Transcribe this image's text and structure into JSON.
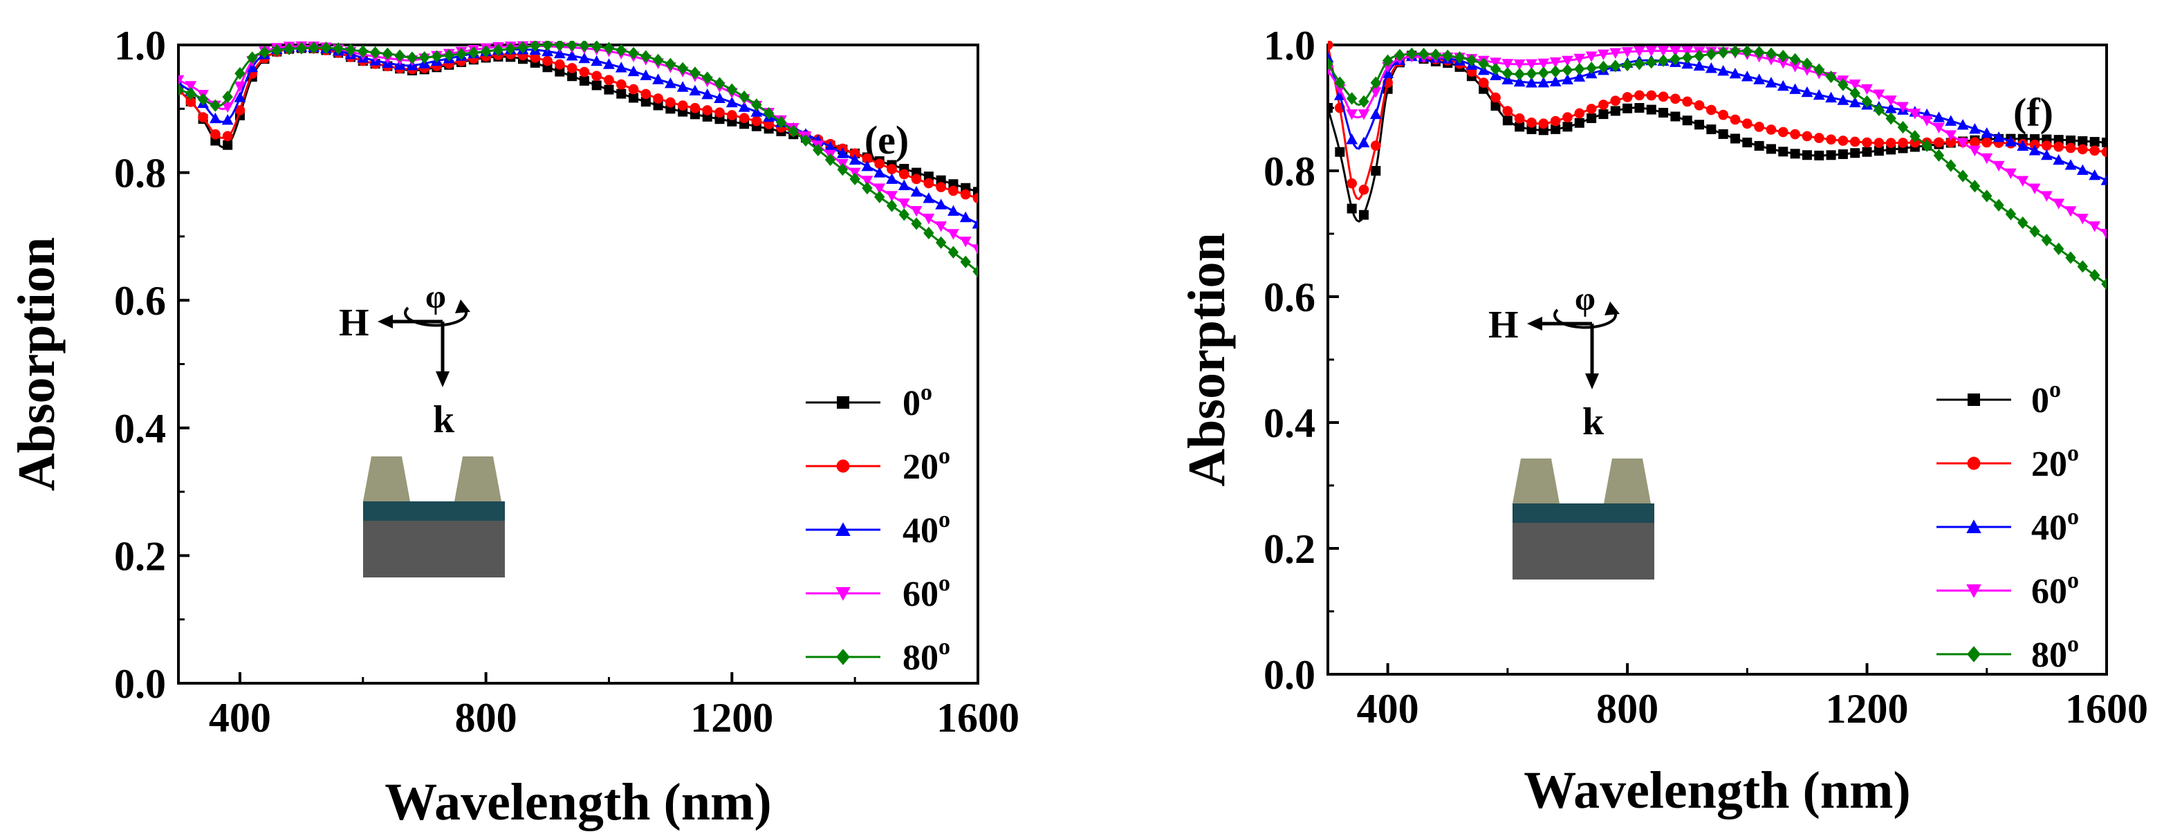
{
  "colors": {
    "s0": "#000000",
    "s20": "#ff0000",
    "s40": "#0000ff",
    "s60": "#ff00ff",
    "s80": "#008000",
    "trapezoid": "#98987a",
    "layer": "#1c4a55",
    "substrate": "#575757"
  },
  "diagram": {
    "h_label": "H",
    "k_label": "k",
    "phi_label": "φ"
  },
  "chart_data": [
    {
      "type": "line",
      "panel_label": "(e)",
      "xlabel": "Wavelength (nm)",
      "ylabel": "Absorption",
      "xlim": [
        300,
        1600
      ],
      "ylim": [
        0.0,
        1.0
      ],
      "xticks": [
        "400",
        "800",
        "1200",
        "1600"
      ],
      "yticks": [
        "0.0",
        "0.2",
        "0.4",
        "0.6",
        "0.8",
        "1.0"
      ],
      "series": [
        {
          "name": "0",
          "marker": "square",
          "color_key": "s0",
          "x": [
            300,
            330,
            360,
            375,
            390,
            420,
            450,
            500,
            550,
            600,
            650,
            680,
            720,
            800,
            850,
            900,
            1000,
            1100,
            1200,
            1300,
            1400,
            1500,
            1600
          ],
          "y": [
            0.93,
            0.9,
            0.85,
            0.84,
            0.86,
            0.95,
            0.985,
            0.995,
            0.99,
            0.975,
            0.965,
            0.96,
            0.965,
            0.98,
            0.98,
            0.965,
            0.93,
            0.9,
            0.88,
            0.86,
            0.83,
            0.8,
            0.77
          ]
        },
        {
          "name": "20",
          "marker": "circle",
          "color_key": "s20",
          "x": [
            300,
            330,
            360,
            375,
            390,
            420,
            450,
            500,
            550,
            600,
            650,
            680,
            720,
            800,
            850,
            900,
            1000,
            1100,
            1200,
            1300,
            1400,
            1500,
            1600
          ],
          "y": [
            0.93,
            0.9,
            0.86,
            0.855,
            0.87,
            0.955,
            0.985,
            0.995,
            0.99,
            0.975,
            0.965,
            0.962,
            0.967,
            0.982,
            0.985,
            0.975,
            0.945,
            0.91,
            0.89,
            0.865,
            0.83,
            0.79,
            0.76
          ]
        },
        {
          "name": "40",
          "marker": "triangle-up",
          "color_key": "s40",
          "x": [
            300,
            330,
            360,
            375,
            390,
            420,
            450,
            500,
            550,
            600,
            650,
            680,
            720,
            800,
            850,
            900,
            1000,
            1100,
            1200,
            1300,
            1400,
            1500,
            1600
          ],
          "y": [
            0.94,
            0.92,
            0.885,
            0.88,
            0.895,
            0.965,
            0.99,
            0.997,
            0.993,
            0.98,
            0.97,
            0.968,
            0.975,
            0.99,
            0.993,
            0.99,
            0.97,
            0.94,
            0.91,
            0.87,
            0.82,
            0.77,
            0.72
          ]
        },
        {
          "name": "60",
          "marker": "triangle-down",
          "color_key": "s60",
          "x": [
            300,
            330,
            360,
            375,
            390,
            420,
            450,
            500,
            550,
            600,
            650,
            680,
            720,
            800,
            850,
            900,
            1000,
            1100,
            1200,
            1300,
            1400,
            1500,
            1600
          ],
          "y": [
            0.945,
            0.93,
            0.905,
            0.9,
            0.915,
            0.975,
            0.993,
            0.998,
            0.995,
            0.985,
            0.978,
            0.976,
            0.983,
            0.995,
            0.998,
            0.998,
            0.99,
            0.965,
            0.925,
            0.87,
            0.8,
            0.74,
            0.68
          ]
        },
        {
          "name": "80",
          "marker": "diamond",
          "color_key": "s80",
          "x": [
            300,
            330,
            360,
            375,
            390,
            420,
            450,
            500,
            550,
            600,
            650,
            680,
            720,
            800,
            850,
            900,
            1000,
            1100,
            1200,
            1300,
            1400,
            1500,
            1600
          ],
          "y": [
            0.93,
            0.92,
            0.905,
            0.91,
            0.94,
            0.98,
            0.99,
            0.995,
            0.995,
            0.99,
            0.985,
            0.98,
            0.982,
            0.99,
            0.995,
            1.0,
            0.995,
            0.97,
            0.93,
            0.865,
            0.79,
            0.72,
            0.645
          ]
        }
      ]
    },
    {
      "type": "line",
      "panel_label": "(f)",
      "xlabel": "Wavelength (nm)",
      "ylabel": "Absorption",
      "xlim": [
        300,
        1600
      ],
      "ylim": [
        0.0,
        1.0
      ],
      "xticks": [
        "400",
        "800",
        "1200",
        "1600"
      ],
      "yticks": [
        "0.0",
        "0.2",
        "0.4",
        "0.6",
        "0.8",
        "1.0"
      ],
      "series": [
        {
          "name": "0",
          "marker": "square",
          "color_key": "s0",
          "x": [
            300,
            320,
            340,
            350,
            360,
            380,
            400,
            430,
            470,
            520,
            560,
            600,
            650,
            700,
            760,
            820,
            900,
            1000,
            1100,
            1200,
            1300,
            1400,
            1500,
            1600
          ],
          "y": [
            0.9,
            0.83,
            0.74,
            0.72,
            0.73,
            0.8,
            0.93,
            0.98,
            0.975,
            0.965,
            0.93,
            0.88,
            0.865,
            0.87,
            0.89,
            0.9,
            0.88,
            0.845,
            0.825,
            0.83,
            0.84,
            0.85,
            0.85,
            0.845
          ]
        },
        {
          "name": "20",
          "marker": "circle",
          "color_key": "s20",
          "x": [
            300,
            320,
            340,
            350,
            360,
            380,
            400,
            430,
            470,
            520,
            560,
            600,
            650,
            700,
            760,
            820,
            900,
            1000,
            1100,
            1200,
            1300,
            1400,
            1500,
            1600
          ],
          "y": [
            1.0,
            0.9,
            0.78,
            0.755,
            0.77,
            0.84,
            0.94,
            0.98,
            0.978,
            0.97,
            0.94,
            0.895,
            0.875,
            0.885,
            0.905,
            0.92,
            0.91,
            0.875,
            0.855,
            0.845,
            0.845,
            0.845,
            0.84,
            0.83
          ]
        },
        {
          "name": "40",
          "marker": "triangle-up",
          "color_key": "s40",
          "x": [
            300,
            320,
            340,
            350,
            360,
            380,
            400,
            430,
            470,
            520,
            560,
            600,
            650,
            700,
            760,
            820,
            900,
            1000,
            1100,
            1200,
            1300,
            1400,
            1500,
            1600
          ],
          "y": [
            0.98,
            0.92,
            0.85,
            0.835,
            0.845,
            0.89,
            0.955,
            0.98,
            0.98,
            0.975,
            0.96,
            0.945,
            0.94,
            0.945,
            0.96,
            0.975,
            0.97,
            0.95,
            0.925,
            0.905,
            0.89,
            0.86,
            0.825,
            0.785
          ]
        },
        {
          "name": "60",
          "marker": "triangle-down",
          "color_key": "s60",
          "x": [
            300,
            320,
            340,
            350,
            360,
            380,
            400,
            430,
            470,
            520,
            560,
            600,
            650,
            700,
            760,
            820,
            900,
            1000,
            1100,
            1200,
            1300,
            1400,
            1500,
            1600
          ],
          "y": [
            0.96,
            0.93,
            0.89,
            0.885,
            0.89,
            0.925,
            0.965,
            0.98,
            0.98,
            0.98,
            0.975,
            0.97,
            0.97,
            0.975,
            0.985,
            0.99,
            0.99,
            0.985,
            0.96,
            0.93,
            0.88,
            0.82,
            0.76,
            0.7
          ]
        },
        {
          "name": "80",
          "marker": "diamond",
          "color_key": "s80",
          "x": [
            300,
            320,
            340,
            350,
            360,
            380,
            400,
            430,
            470,
            520,
            560,
            600,
            650,
            700,
            760,
            820,
            900,
            1000,
            1100,
            1200,
            1300,
            1400,
            1500,
            1600
          ],
          "y": [
            0.97,
            0.94,
            0.915,
            0.905,
            0.91,
            0.94,
            0.975,
            0.985,
            0.985,
            0.98,
            0.97,
            0.955,
            0.955,
            0.96,
            0.965,
            0.97,
            0.98,
            0.99,
            0.97,
            0.91,
            0.84,
            0.76,
            0.69,
            0.62
          ]
        }
      ]
    }
  ]
}
